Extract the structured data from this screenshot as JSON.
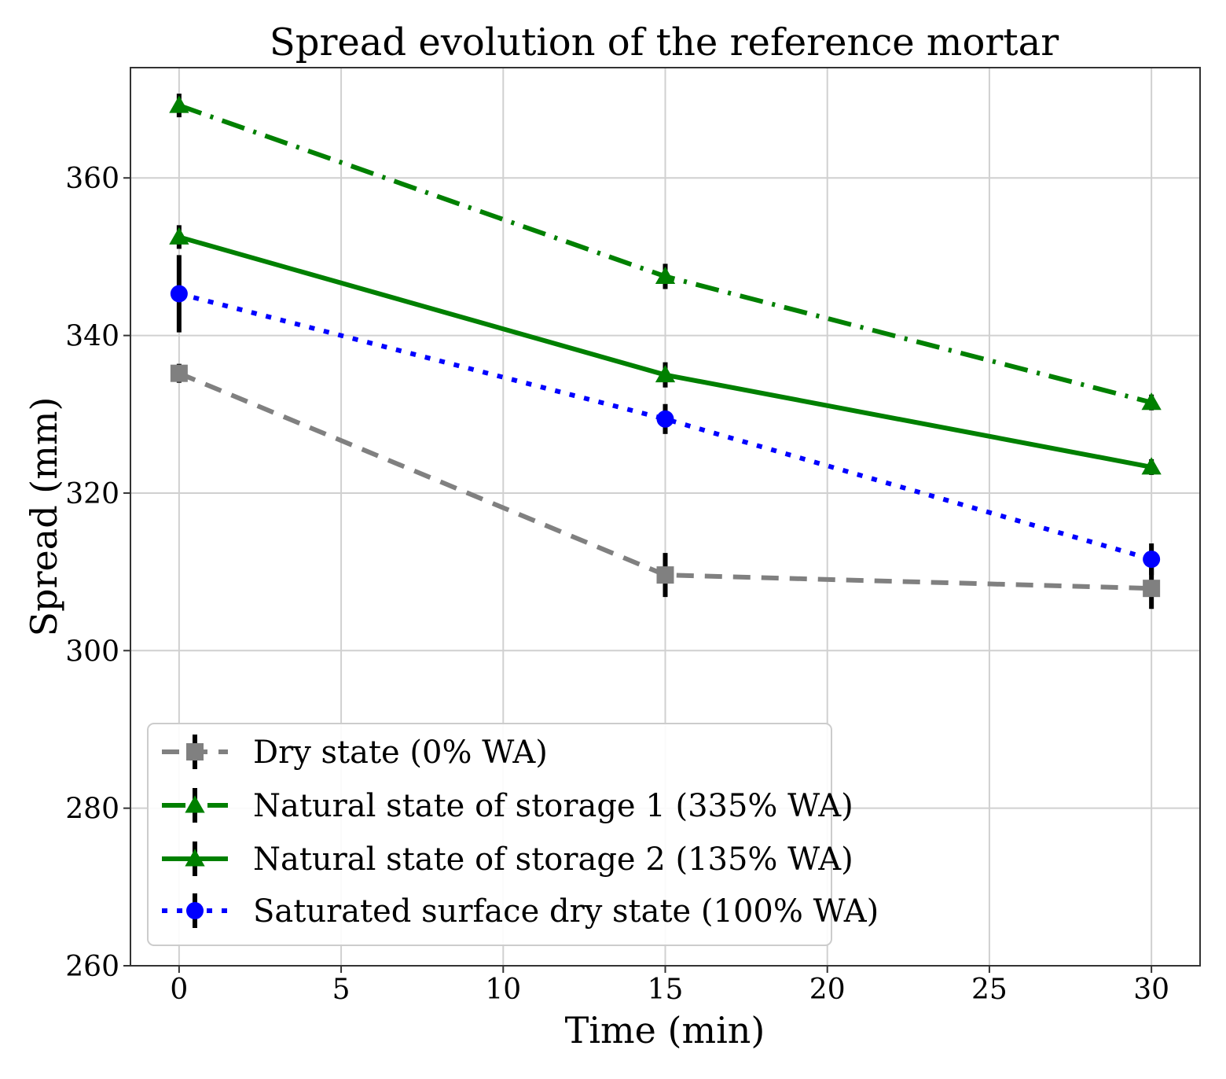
{
  "chart_data": {
    "type": "line",
    "title": "Spread evolution of the reference mortar",
    "xlabel": "Time (min)",
    "ylabel": "Spread (mm)",
    "xlim": [
      -1.5,
      31.5
    ],
    "ylim": [
      260,
      374
    ],
    "xticks": [
      0,
      5,
      10,
      15,
      20,
      25,
      30
    ],
    "yticks": [
      260,
      280,
      300,
      320,
      340,
      360
    ],
    "grid": true,
    "legend_position": "lower-left",
    "x": [
      0,
      15,
      30
    ],
    "series": [
      {
        "name": "Dry state (0% WA)",
        "values": [
          335.2,
          309.6,
          307.9
        ],
        "errors": [
          1.2,
          2.8,
          2.6
        ],
        "color": "#808080",
        "dash": "22 14",
        "marker": "square"
      },
      {
        "name": "Natural state of storage 1 (335% WA)",
        "values": [
          369.2,
          347.5,
          331.5
        ],
        "errors": [
          1.5,
          1.6,
          1.0
        ],
        "color": "#008000",
        "dash": "30 12 4 12",
        "marker": "triangle"
      },
      {
        "name": "Natural state of storage 2 (135% WA)",
        "values": [
          352.5,
          335.0,
          323.3
        ],
        "errors": [
          1.5,
          1.6,
          1.0
        ],
        "color": "#008000",
        "dash": "",
        "marker": "triangle"
      },
      {
        "name": "Saturated surface dry state (100% WA)",
        "values": [
          345.3,
          329.4,
          311.6
        ],
        "errors": [
          4.9,
          1.9,
          2.0
        ],
        "color": "#0000ff",
        "dash": "7 12",
        "marker": "circle"
      }
    ]
  }
}
